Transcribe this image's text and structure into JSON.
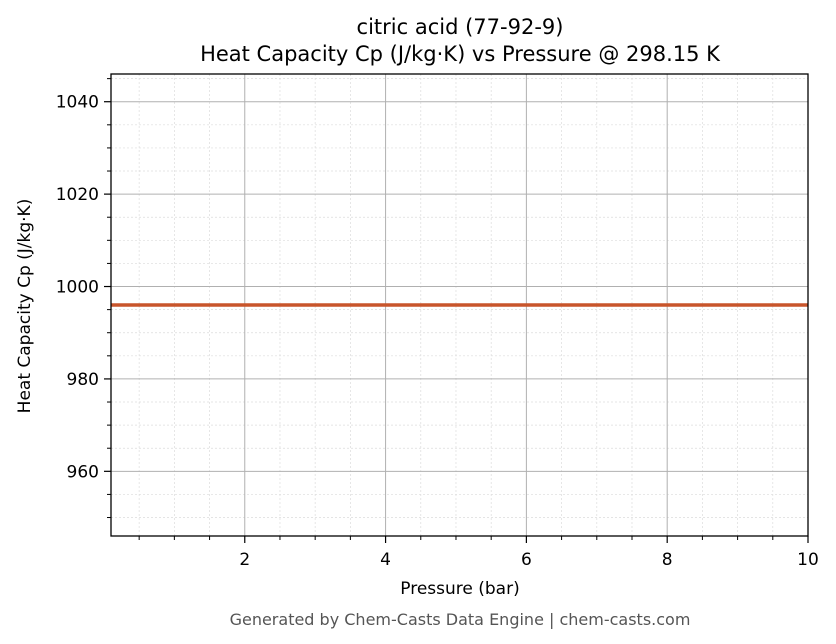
{
  "chart_data": {
    "type": "line",
    "title": "citric acid (77-92-9)",
    "subtitle": "Heat Capacity Cp (J/kg·K) vs Pressure @ 298.15 K",
    "xlabel": "Pressure (bar)",
    "ylabel": "Heat Capacity Cp (J/kg·K)",
    "xlim": [
      0.1,
      10
    ],
    "ylim": [
      946,
      1046
    ],
    "x_ticks": [
      2,
      4,
      6,
      8,
      10
    ],
    "y_ticks": [
      960,
      980,
      1000,
      1020,
      1040
    ],
    "x_minor_step": 0.5,
    "y_minor_step": 5,
    "grid": true,
    "series": [
      {
        "color": "#c8552b",
        "x": [
          0.1,
          10
        ],
        "y": [
          996,
          996
        ]
      }
    ]
  },
  "footer": "Generated by Chem-Casts Data Engine | chem-casts.com"
}
